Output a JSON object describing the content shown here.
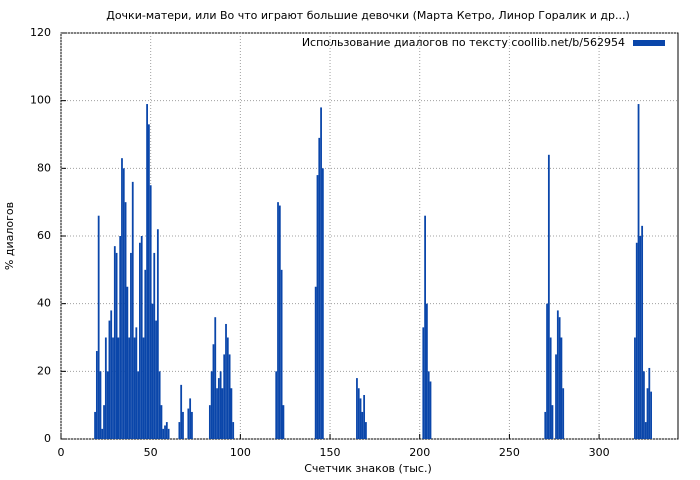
{
  "chart_data": {
    "type": "bar",
    "title": "Дочки-матери, или Во что играют большие девочки (Марта Кетро, Линор Горалик и др...)",
    "x_label": "Счетчик знаков (тыс.)",
    "y_label": "% диалогов",
    "xlim": [
      0,
      344
    ],
    "ylim": [
      0,
      120
    ],
    "xticks": [
      0,
      50,
      100,
      150,
      200,
      250,
      300
    ],
    "yticks": [
      0,
      20,
      40,
      60,
      80,
      100,
      120
    ],
    "grid": true,
    "legend": "top-right",
    "x": [
      19,
      20,
      21,
      22,
      23,
      24,
      25,
      26,
      27,
      28,
      29,
      30,
      31,
      32,
      33,
      34,
      35,
      36,
      37,
      38,
      39,
      40,
      41,
      42,
      43,
      44,
      45,
      46,
      47,
      48,
      49,
      50,
      51,
      52,
      53,
      54,
      55,
      56,
      57,
      58,
      59,
      60,
      66,
      67,
      68,
      71,
      72,
      73,
      83,
      84,
      85,
      86,
      87,
      88,
      89,
      90,
      91,
      92,
      93,
      94,
      95,
      96,
      120,
      121,
      122,
      123,
      124,
      142,
      143,
      144,
      145,
      146,
      165,
      166,
      167,
      168,
      169,
      170,
      202,
      203,
      204,
      205,
      206,
      270,
      271,
      272,
      273,
      274,
      276,
      277,
      278,
      279,
      280,
      320,
      321,
      322,
      323,
      324,
      325,
      326,
      327,
      328,
      329
    ],
    "series": [
      {
        "name": "Использование диалогов по тексту coollib.net/b/562954",
        "color": "#0a46aa",
        "values": [
          8,
          26,
          66,
          20,
          3,
          10,
          30,
          20,
          35,
          38,
          30,
          57,
          55,
          30,
          60,
          83,
          80,
          70,
          45,
          30,
          55,
          76,
          30,
          33,
          20,
          58,
          60,
          30,
          50,
          99,
          93,
          75,
          40,
          55,
          35,
          62,
          20,
          10,
          3,
          4,
          5,
          3,
          5,
          16,
          8,
          9,
          12,
          8,
          10,
          20,
          28,
          36,
          15,
          18,
          20,
          15,
          25,
          34,
          30,
          25,
          15,
          5,
          20,
          70,
          69,
          50,
          10,
          45,
          78,
          89,
          98,
          80,
          18,
          15,
          12,
          8,
          13,
          5,
          33,
          66,
          40,
          20,
          17,
          8,
          40,
          84,
          30,
          10,
          25,
          38,
          36,
          30,
          15,
          30,
          58,
          99,
          60,
          63,
          20,
          5,
          15,
          21,
          14
        ]
      }
    ]
  }
}
